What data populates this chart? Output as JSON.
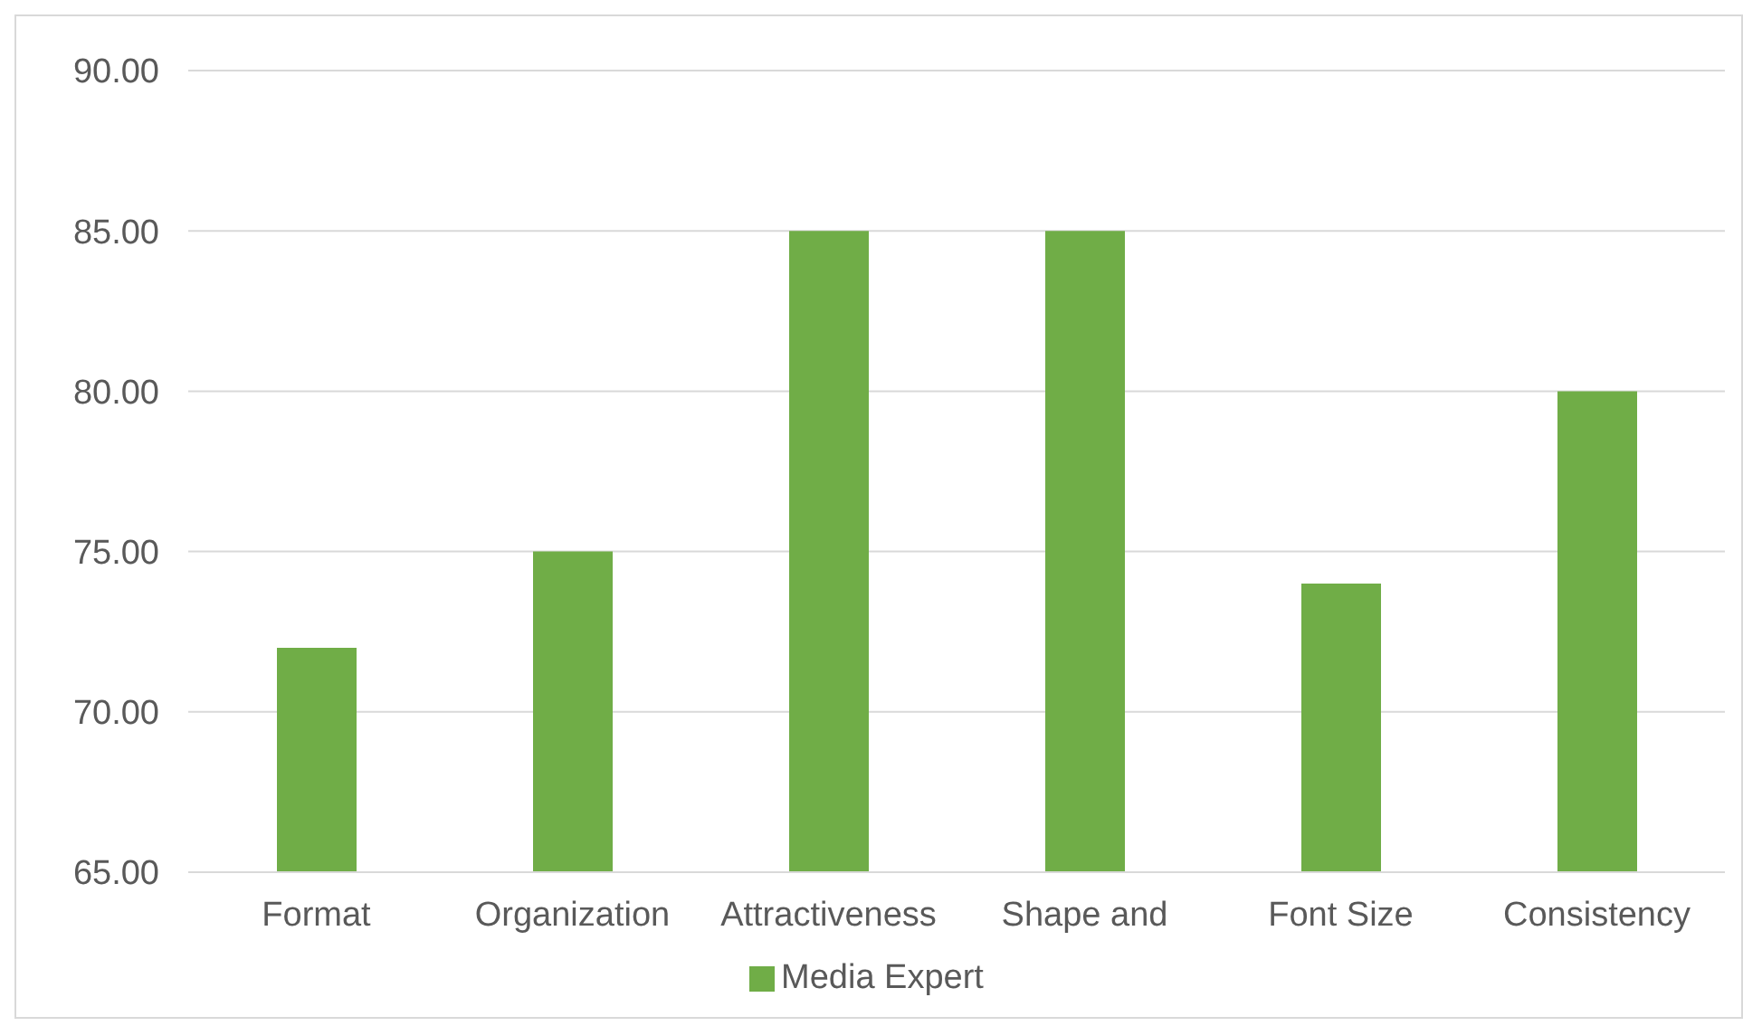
{
  "chart_data": {
    "type": "bar",
    "categories": [
      "Format",
      "Organization",
      "Attractiveness",
      "Shape and",
      "Font Size",
      "Consistency"
    ],
    "series": [
      {
        "name": "Media Expert",
        "color": "#70ad47",
        "values": [
          72,
          75,
          85,
          85,
          74,
          80
        ]
      }
    ],
    "ylim": [
      65,
      90
    ],
    "yticks": [
      {
        "value": 65,
        "label": "65.00"
      },
      {
        "value": 70,
        "label": "70.00"
      },
      {
        "value": 75,
        "label": "75.00"
      },
      {
        "value": 80,
        "label": "80.00"
      },
      {
        "value": 85,
        "label": "85.00"
      },
      {
        "value": 90,
        "label": "90.00"
      }
    ],
    "grid": "y",
    "legend": "bottom"
  }
}
